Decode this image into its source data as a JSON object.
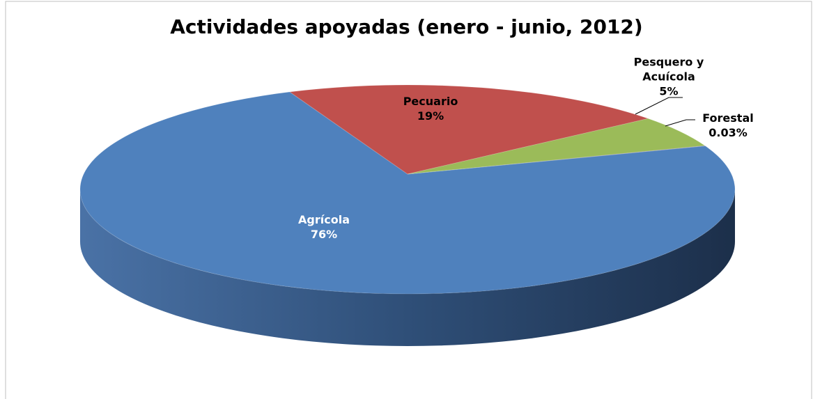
{
  "chart_data": {
    "type": "pie",
    "title": "Actividades apoyadas (enero - junio, 2012)",
    "categories": [
      "Agrícola",
      "Pecuario",
      "Pesquero y Acuícola",
      "Forestal"
    ],
    "values": [
      76,
      19,
      5,
      0.03
    ],
    "value_labels": [
      "76%",
      "19%",
      "5%",
      "0.03%"
    ],
    "colors": [
      "#4f81bd",
      "#c0504d",
      "#9bbb59",
      "#8064a2"
    ]
  }
}
